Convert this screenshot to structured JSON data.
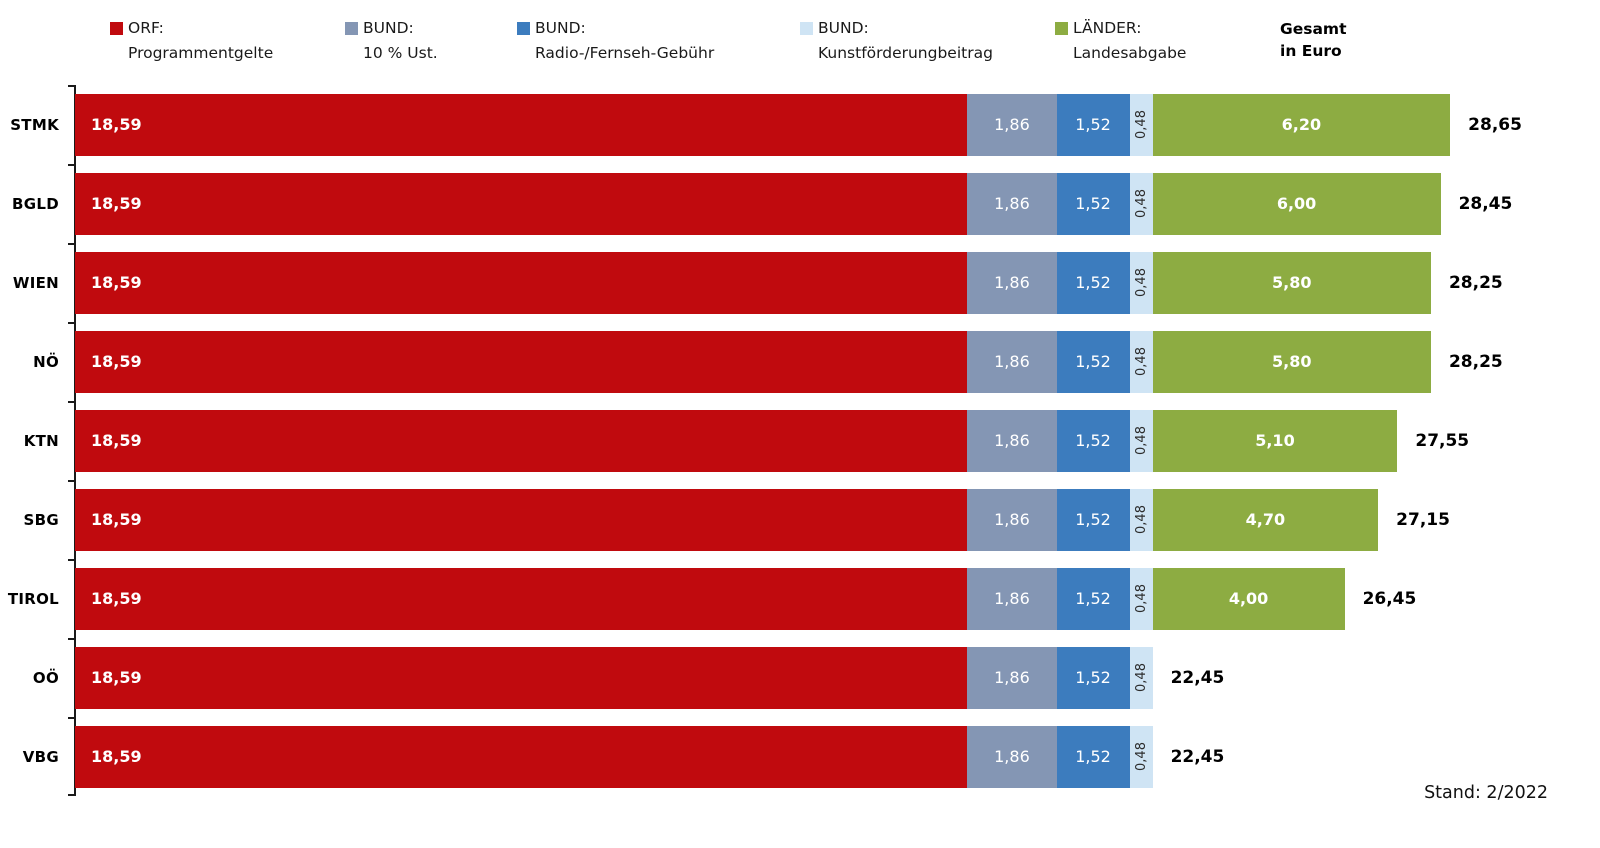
{
  "legend": [
    {
      "key": "orf",
      "label_top": "ORF:",
      "label_bottom": "Programmentgelte",
      "color": "#c00a0e"
    },
    {
      "key": "ust",
      "label_top": "BUND:",
      "label_bottom": "10 % Ust.",
      "color": "#8496b4"
    },
    {
      "key": "gebuehr",
      "label_top": "BUND:",
      "label_bottom": "Radio-/Fernseh-Gebühr",
      "color": "#3c7cbe"
    },
    {
      "key": "kunst",
      "label_top": "BUND:",
      "label_bottom": "Kunstförderungbeitrag",
      "color": "#cfe4f4"
    },
    {
      "key": "land",
      "label_top": "LÄNDER:",
      "label_bottom": "Landesabgabe",
      "color": "#8dac42"
    }
  ],
  "gesamt_header": {
    "line1": "Gesamt",
    "line2": "in Euro"
  },
  "footer": {
    "stand": "Stand: 2/2022"
  },
  "chart_data": {
    "type": "bar",
    "orientation": "horizontal",
    "stacked": true,
    "value_unit": "Euro",
    "decimal_separator": ",",
    "xlim": [
      0,
      30
    ],
    "categories": [
      "STMK",
      "BGLD",
      "WIEN",
      "NÖ",
      "KTN",
      "SBG",
      "TIROL",
      "OÖ",
      "VBG"
    ],
    "series": [
      {
        "key": "orf",
        "name": "ORF: Programmentgelte",
        "color": "#c00a0e",
        "values": [
          18.59,
          18.59,
          18.59,
          18.59,
          18.59,
          18.59,
          18.59,
          18.59,
          18.59
        ]
      },
      {
        "key": "ust",
        "name": "BUND: 10 % Ust.",
        "color": "#8496b4",
        "values": [
          1.86,
          1.86,
          1.86,
          1.86,
          1.86,
          1.86,
          1.86,
          1.86,
          1.86
        ]
      },
      {
        "key": "gebuehr",
        "name": "BUND: Radio-/Fernseh-Gebühr",
        "color": "#3c7cbe",
        "values": [
          1.52,
          1.52,
          1.52,
          1.52,
          1.52,
          1.52,
          1.52,
          1.52,
          1.52
        ]
      },
      {
        "key": "kunst",
        "name": "BUND: Kunstförderungbeitrag",
        "color": "#cfe4f4",
        "values": [
          0.48,
          0.48,
          0.48,
          0.48,
          0.48,
          0.48,
          0.48,
          0.48,
          0.48
        ]
      },
      {
        "key": "land",
        "name": "LÄNDER: Landesabgabe",
        "color": "#8dac42",
        "values": [
          6.2,
          6.0,
          5.8,
          5.8,
          5.1,
          4.7,
          4.0,
          0,
          0
        ]
      }
    ],
    "totals": [
      28.65,
      28.45,
      28.25,
      28.25,
      27.55,
      27.15,
      26.45,
      22.45,
      22.45
    ]
  }
}
